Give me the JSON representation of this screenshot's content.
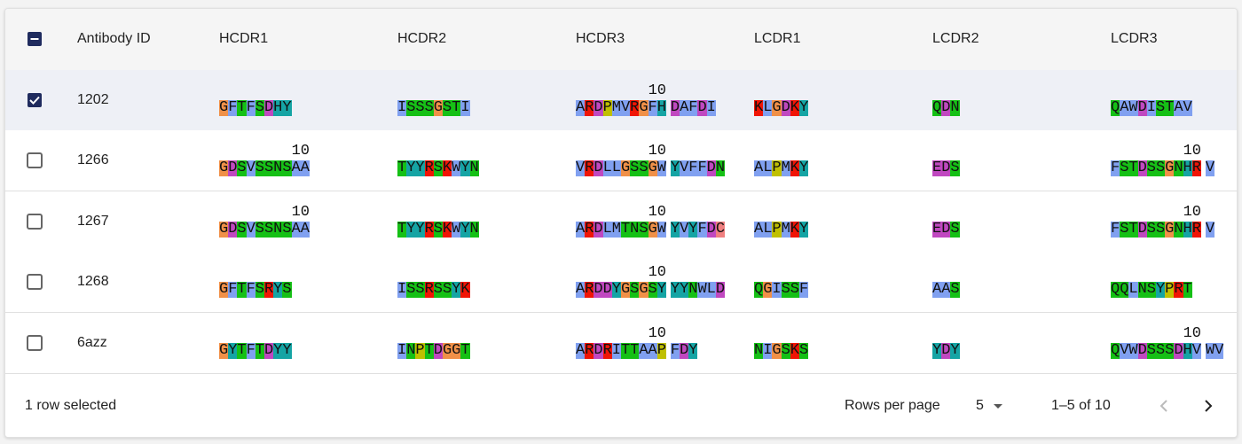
{
  "table": {
    "columns": [
      "Antibody ID",
      "HCDR1",
      "HCDR2",
      "HCDR3",
      "LCDR1",
      "LCDR2",
      "LCDR3"
    ],
    "header_checkbox": "indeterminate",
    "ruler_mark": 10,
    "rows": [
      {
        "selected": true,
        "cells": [
          "1202",
          "GFTFSDHY",
          "ISSSGSTI",
          "ARDPMVRGFHDAFDI",
          "KLGDKY",
          "QDN",
          "QAWDISTAV"
        ]
      },
      {
        "selected": false,
        "cells": [
          "1266",
          "GDSVSSNSAA",
          "TYYRSKWYN",
          "VRDLLGSSGWYVFFDN",
          "ALPMKY",
          "EDS",
          "FSTDSSGNHRV"
        ]
      },
      {
        "selected": false,
        "cells": [
          "1267",
          "GDSVSSNSAA",
          "TYYRSKWYN",
          "ARDLMTNSGWYVYFDC",
          "ALPMKY",
          "EDS",
          "FSTDSSGNHRV"
        ]
      },
      {
        "selected": false,
        "cells": [
          "1268",
          "GFTFSRYS",
          "ISSRSSYK",
          "ARDDYGSGSYYYNWLD",
          "QGISSF",
          "AAS",
          "QQLNSYPRT"
        ]
      },
      {
        "selected": false,
        "cells": [
          "6azz",
          "GYTFTDYY",
          "INPTDGGT",
          "ARDRITTAAPFDY",
          "NIGSKS",
          "YDY",
          "QVWDSSSDHVWV"
        ]
      }
    ]
  },
  "footer": {
    "selection": "1 row selected",
    "rows_per_page_label": "Rows per page",
    "rows_per_page": 5,
    "range": "1–5 of 10"
  }
}
